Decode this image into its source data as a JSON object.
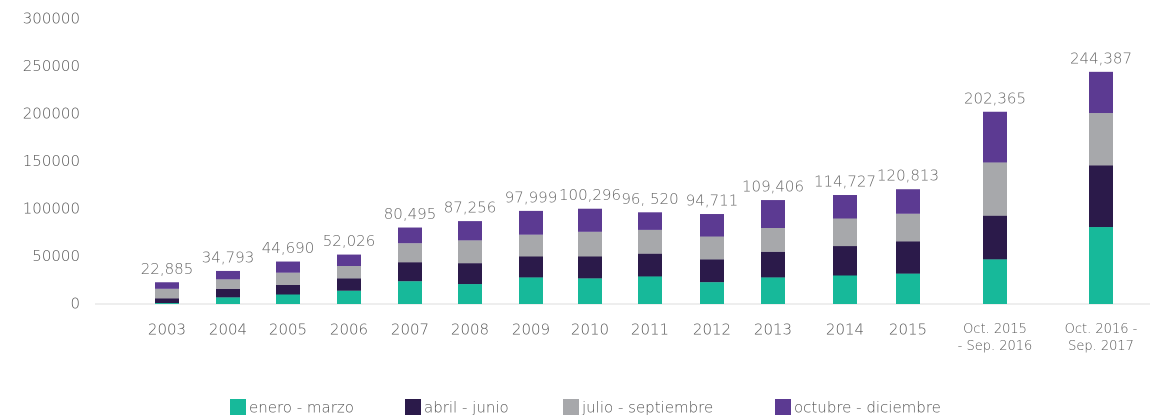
{
  "chart_data": {
    "type": "stacked_bar",
    "categories": [
      "2003",
      "2004",
      "2005",
      "2006",
      "2007",
      "2008",
      "2009",
      "2010",
      "2011",
      "2012",
      "2013",
      "2014",
      "2015",
      "Oct. 2015\n- Sep. 2016",
      "Oct. 2016 -\nSep. 2017"
    ],
    "series": [
      {
        "name": "enero - marzo",
        "color": "#17b99a",
        "values": [
          1000,
          7000,
          10000,
          14000,
          24000,
          21000,
          28000,
          27000,
          29000,
          23000,
          28000,
          30000,
          32000,
          47000,
          81000
        ]
      },
      {
        "name": "abril - junio",
        "color": "#2b1a4a",
        "values": [
          5000,
          9000,
          10000,
          13000,
          20000,
          22000,
          22000,
          23000,
          24000,
          24000,
          27000,
          31000,
          34000,
          46000,
          65000
        ]
      },
      {
        "name": "julio - septiembre",
        "color": "#a7a8ab",
        "values": [
          10000,
          10000,
          13000,
          13000,
          20000,
          24000,
          23000,
          26000,
          25000,
          24000,
          25000,
          29000,
          29000,
          56000,
          55000
        ]
      },
      {
        "name": "octubre - diciembre",
        "color": "#5c3a92",
        "values": [
          6885,
          8793,
          11690,
          12026,
          16495,
          20256,
          24999,
          24296,
          18520,
          23711,
          29406,
          24727,
          25813,
          53365,
          43387
        ]
      }
    ],
    "totals": [
      22885,
      34793,
      44690,
      52026,
      80495,
      87256,
      97999,
      100296,
      96520,
      94711,
      109406,
      114727,
      120813,
      202365,
      244387
    ],
    "total_labels": [
      "22,885",
      "34,793",
      "44,690",
      "52,026",
      "80,495",
      "87,256",
      "97,999",
      "100,296",
      "96, 520",
      "94,711",
      "109,406",
      "114,727",
      "120,813",
      "202,365",
      "244,387"
    ],
    "ylim": [
      0,
      300000
    ],
    "yticks": [
      0,
      50000,
      100000,
      150000,
      200000,
      250000,
      300000
    ],
    "grid": false,
    "legend": "bottom"
  }
}
